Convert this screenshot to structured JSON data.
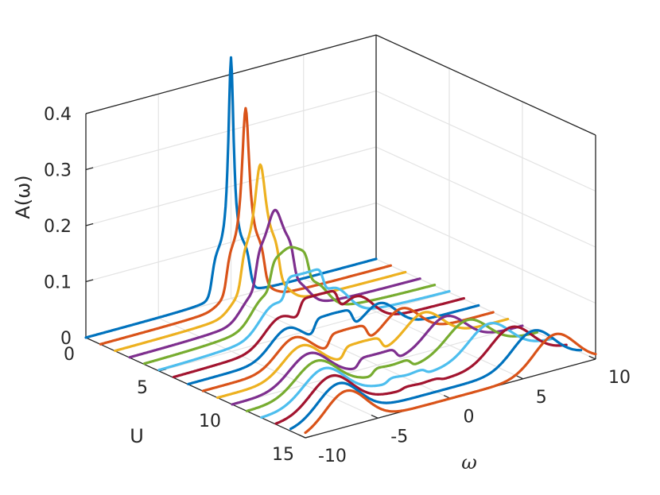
{
  "chart_data": {
    "type": "line",
    "projection": "3d-waterfall",
    "xlabel": "ω",
    "ylabel": "U",
    "zlabel": "A(ω)",
    "xlim": [
      -10,
      10
    ],
    "ylim": [
      0,
      15
    ],
    "zlim": [
      0,
      0.4
    ],
    "xticks": [
      "-10",
      "-5",
      "0",
      "5",
      "10"
    ],
    "yticks": [
      "0",
      "5",
      "10",
      "15"
    ],
    "zticks": [
      "0",
      "0.1",
      "0.2",
      "0.3",
      "0.4"
    ],
    "grid": true,
    "line_colors": [
      "#0072BD",
      "#D95319",
      "#EDB120",
      "#7E2F8E",
      "#77AC30",
      "#4DBEEE",
      "#A2142F"
    ],
    "series": [
      {
        "U": 0,
        "hub_width": 0.22,
        "peak_height": 0.43,
        "shoulder_height": 0.076,
        "band_center": 1.3,
        "band_width": 0.8,
        "satellite_height": 0.0
      },
      {
        "U": 1,
        "hub_width": 0.32,
        "peak_height": 0.35,
        "shoulder_height": 0.078,
        "band_center": 1.4,
        "band_width": 0.85,
        "satellite_height": 0.01
      },
      {
        "U": 2,
        "hub_width": 0.5,
        "peak_height": 0.26,
        "shoulder_height": 0.078,
        "band_center": 1.5,
        "band_width": 0.9,
        "satellite_height": 0.02
      },
      {
        "U": 3,
        "hub_width": 0.8,
        "peak_height": 0.19,
        "shoulder_height": 0.075,
        "band_center": 1.7,
        "band_width": 1.0,
        "satellite_height": 0.03
      },
      {
        "U": 4,
        "hub_width": 1.4,
        "peak_height": 0.135,
        "shoulder_height": 0.06,
        "band_center": 1.9,
        "band_width": 1.1,
        "satellite_height": 0.035
      },
      {
        "U": 5,
        "hub_width": 2.0,
        "peak_height": 0.1,
        "shoulder_height": 0.05,
        "band_center": 2.2,
        "band_width": 1.3,
        "satellite_height": 0.04
      },
      {
        "U": 6,
        "hub_width": 1.9,
        "peak_height": 0.075,
        "shoulder_height": 0.04,
        "band_center": 2.7,
        "band_width": 1.5,
        "satellite_height": 0.045
      },
      {
        "U": 7,
        "hub_width": 1.7,
        "peak_height": 0.055,
        "shoulder_height": 0.035,
        "band_center": 3.2,
        "band_width": 1.6,
        "satellite_height": 0.048
      },
      {
        "U": 8,
        "hub_width": 1.5,
        "peak_height": 0.04,
        "shoulder_height": 0.03,
        "band_center": 3.7,
        "band_width": 1.7,
        "satellite_height": 0.05
      },
      {
        "U": 9,
        "hub_width": 1.3,
        "peak_height": 0.03,
        "shoulder_height": 0.025,
        "band_center": 4.2,
        "band_width": 1.8,
        "satellite_height": 0.052
      },
      {
        "U": 10,
        "hub_width": 1.1,
        "peak_height": 0.02,
        "shoulder_height": 0.02,
        "band_center": 4.7,
        "band_width": 1.9,
        "satellite_height": 0.054
      },
      {
        "U": 11,
        "hub_width": 0.9,
        "peak_height": 0.012,
        "shoulder_height": 0.015,
        "band_center": 5.2,
        "band_width": 2.0,
        "satellite_height": 0.056
      },
      {
        "U": 12,
        "hub_width": 0.8,
        "peak_height": 0.006,
        "shoulder_height": 0.01,
        "band_center": 5.7,
        "band_width": 2.0,
        "satellite_height": 0.058
      },
      {
        "U": 13,
        "hub_width": 0.7,
        "peak_height": 0.003,
        "shoulder_height": 0.005,
        "band_center": 6.2,
        "band_width": 2.0,
        "satellite_height": 0.06
      },
      {
        "U": 14,
        "hub_width": 0.6,
        "peak_height": 0.0,
        "shoulder_height": 0.0,
        "band_center": 6.7,
        "band_width": 2.0,
        "satellite_height": 0.062
      },
      {
        "U": 15,
        "hub_width": 0.6,
        "peak_height": 0.0,
        "shoulder_height": 0.0,
        "band_center": 7.2,
        "band_width": 2.0,
        "satellite_height": 0.064
      }
    ]
  }
}
